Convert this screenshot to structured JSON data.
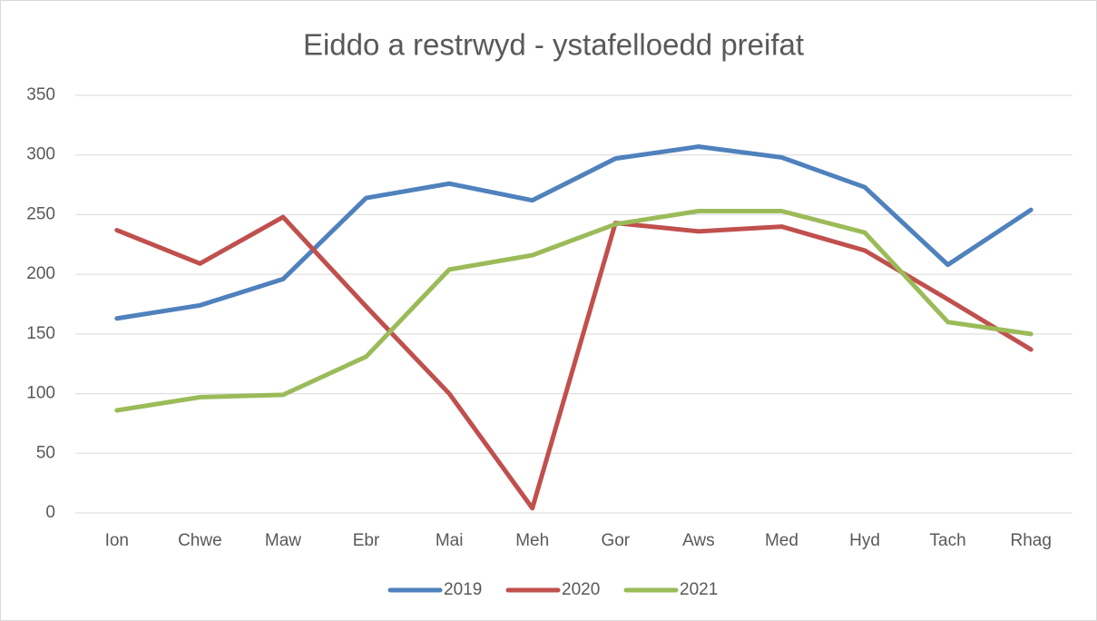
{
  "chart_data": {
    "type": "line",
    "title": "Eiddo a restrwyd - ystafelloedd preifat",
    "categories": [
      "Ion",
      "Chwe",
      "Maw",
      "Ebr",
      "Mai",
      "Meh",
      "Gor",
      "Aws",
      "Med",
      "Hyd",
      "Tach",
      "Rhag"
    ],
    "series": [
      {
        "name": "2019",
        "color": "#4f81bd",
        "values": [
          163,
          174,
          196,
          264,
          276,
          262,
          297,
          307,
          298,
          273,
          208,
          254
        ]
      },
      {
        "name": "2020",
        "color": "#c0504d",
        "values": [
          237,
          209,
          248,
          173,
          100,
          4,
          243,
          236,
          240,
          220,
          179,
          137
        ]
      },
      {
        "name": "2021",
        "color": "#9bbb59",
        "values": [
          86,
          97,
          99,
          131,
          204,
          216,
          242,
          253,
          253,
          235,
          160,
          150
        ]
      }
    ],
    "ylim": [
      0,
      350
    ],
    "yticks": [
      0,
      50,
      100,
      150,
      200,
      250,
      300,
      350
    ],
    "grid": true,
    "legend": "bottom"
  }
}
